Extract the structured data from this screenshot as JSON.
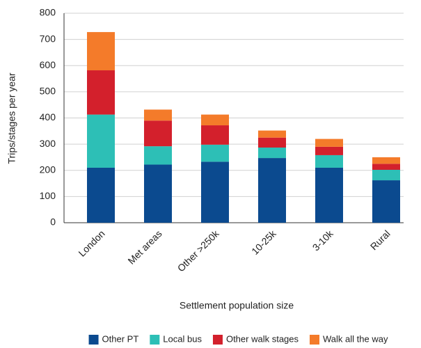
{
  "chart_data": {
    "type": "stacked_bar",
    "xlabel": "Settlement population size",
    "ylabel": "Trips/stages per year",
    "categories": [
      "London",
      "Met areas",
      "Other >250k",
      "10-25k",
      "3-10k",
      "Rural"
    ],
    "series": [
      {
        "name": "Other PT",
        "color": "#0b4a8f",
        "values": [
          210,
          222,
          233,
          247,
          210,
          162
        ]
      },
      {
        "name": "Local bus",
        "color": "#2dbfb6",
        "values": [
          203,
          70,
          65,
          40,
          48,
          40
        ]
      },
      {
        "name": "Other walk stages",
        "color": "#d3202c",
        "values": [
          169,
          98,
          74,
          38,
          32,
          23
        ]
      },
      {
        "name": "Walk all the way",
        "color": "#f47b2a",
        "values": [
          146,
          42,
          41,
          27,
          30,
          25
        ]
      }
    ],
    "ylim": [
      0,
      800
    ],
    "yticks": [
      0,
      100,
      200,
      300,
      400,
      500,
      600,
      700,
      800
    ],
    "grid": true
  }
}
